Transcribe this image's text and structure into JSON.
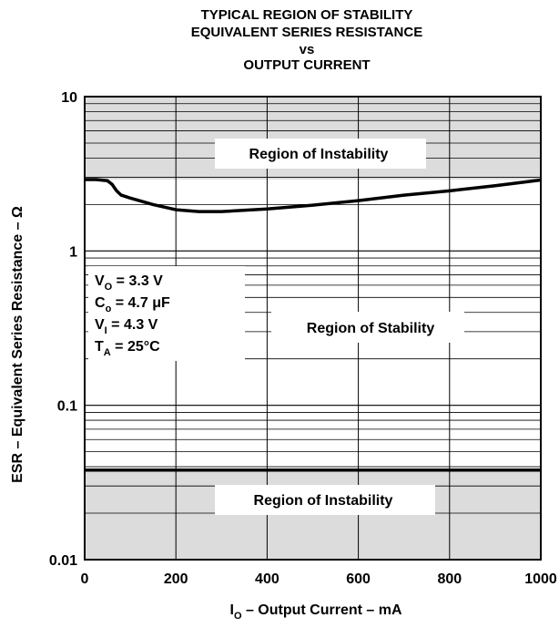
{
  "chart_data": {
    "type": "line",
    "title": [
      "TYPICAL REGION OF STABILITY",
      "EQUIVALENT SERIES RESISTANCE",
      "vs",
      "OUTPUT CURRENT"
    ],
    "xlabel": {
      "main": "I",
      "sub": "O",
      "rest": " – Output Current – mA"
    },
    "ylabel": "ESR – Equivalent Series Resistance –  Ω",
    "xlim": [
      0,
      1000
    ],
    "ylim": [
      0.01,
      10
    ],
    "y_scale": "log",
    "x_ticks": [
      0,
      200,
      400,
      600,
      800,
      1000
    ],
    "x_tick_labels": [
      "0",
      "200",
      "400",
      "600",
      "800",
      "1000"
    ],
    "y_ticks": [
      0.01,
      0.1,
      1,
      10
    ],
    "y_tick_labels": [
      "0.01",
      "0.1",
      "1",
      "10"
    ],
    "grid": true,
    "series": [
      {
        "x": [
          0,
          25,
          50,
          60,
          70,
          80,
          100,
          150,
          200,
          250,
          300,
          400,
          500,
          600,
          700,
          800,
          900,
          1000
        ],
        "y": [
          2.9,
          2.9,
          2.85,
          2.7,
          2.45,
          2.3,
          2.2,
          2.0,
          1.85,
          1.8,
          1.8,
          1.87,
          1.98,
          2.12,
          2.3,
          2.45,
          2.65,
          2.88
        ]
      },
      {
        "x": [
          0,
          1000
        ],
        "y": [
          0.038,
          0.038
        ]
      }
    ],
    "regions": [
      {
        "label": "Region of Instability",
        "y_range": [
          2.9,
          10
        ]
      },
      {
        "label": "Region of Stability",
        "y_range": [
          0.038,
          2.9
        ]
      },
      {
        "label": "Region of Instability",
        "y_range": [
          0.01,
          0.038
        ]
      }
    ],
    "annotations": [
      {
        "main": "V",
        "sub": "O",
        "rest": " = 3.3 V"
      },
      {
        "main": "C",
        "sub": "o",
        "rest": " = 4.7 μF"
      },
      {
        "main": "V",
        "sub": "I",
        "rest": " = 4.3 V"
      },
      {
        "main": "T",
        "sub": "A",
        "rest": " = 25°C"
      }
    ],
    "colors": {
      "instability_fill": "#dcdcdc",
      "stability_fill": "#ffffff",
      "line": "#000000",
      "grid": "#000000"
    }
  }
}
